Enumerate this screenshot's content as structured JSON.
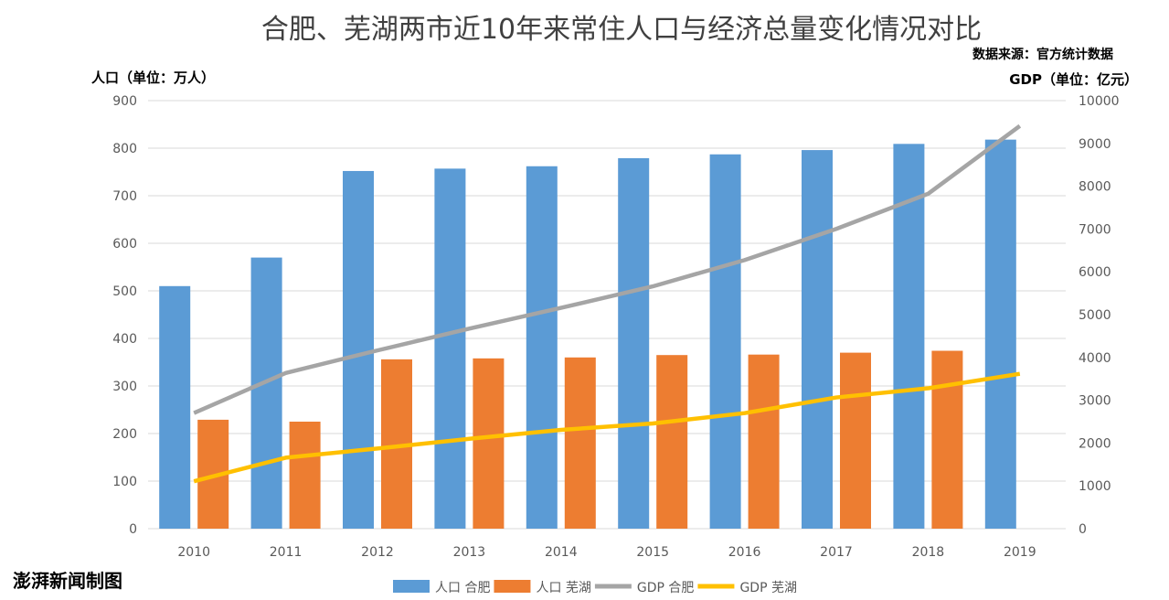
{
  "chart_data": {
    "type": "bar+line",
    "title": "合肥、芜湖两市近10年来常住人口与经济总量变化情况对比",
    "source": "数据来源：官方统计数据",
    "ylabel": "人口（单位：万人）",
    "y2label": "GDP（单位：亿元）",
    "brand": "澎湃新闻制图",
    "categories": [
      "2010",
      "2011",
      "2012",
      "2013",
      "2014",
      "2015",
      "2016",
      "2017",
      "2018",
      "2019"
    ],
    "ylim": [
      0,
      900
    ],
    "yticks": [
      0,
      100,
      200,
      300,
      400,
      500,
      600,
      700,
      800,
      900
    ],
    "y2lim": [
      0,
      10000
    ],
    "y2ticks": [
      0,
      1000,
      2000,
      3000,
      4000,
      5000,
      6000,
      7000,
      8000,
      9000,
      10000
    ],
    "grid": true,
    "legend_position": "bottom",
    "series": [
      {
        "name": "人口 合肥",
        "kind": "bar",
        "axis": "left",
        "color": "#5b9bd5",
        "values": [
          510,
          570,
          752,
          757,
          762,
          779,
          787,
          796,
          809,
          818
        ]
      },
      {
        "name": "人口 芜湖",
        "kind": "bar",
        "axis": "left",
        "color": "#ed7d31",
        "values": [
          229,
          225,
          356,
          358,
          360,
          365,
          366,
          370,
          374,
          null
        ]
      },
      {
        "name": "GDP 合肥",
        "kind": "line",
        "axis": "right",
        "color": "#a5a5a5",
        "values": [
          2702,
          3637,
          4164,
          4673,
          5158,
          5660,
          6274,
          7003,
          7823,
          9409
        ]
      },
      {
        "name": "GDP 芜湖",
        "kind": "line",
        "axis": "right",
        "color": "#ffc000",
        "values": [
          1108,
          1658,
          1873,
          2099,
          2307,
          2457,
          2699,
          3065,
          3279,
          3618
        ]
      }
    ]
  }
}
